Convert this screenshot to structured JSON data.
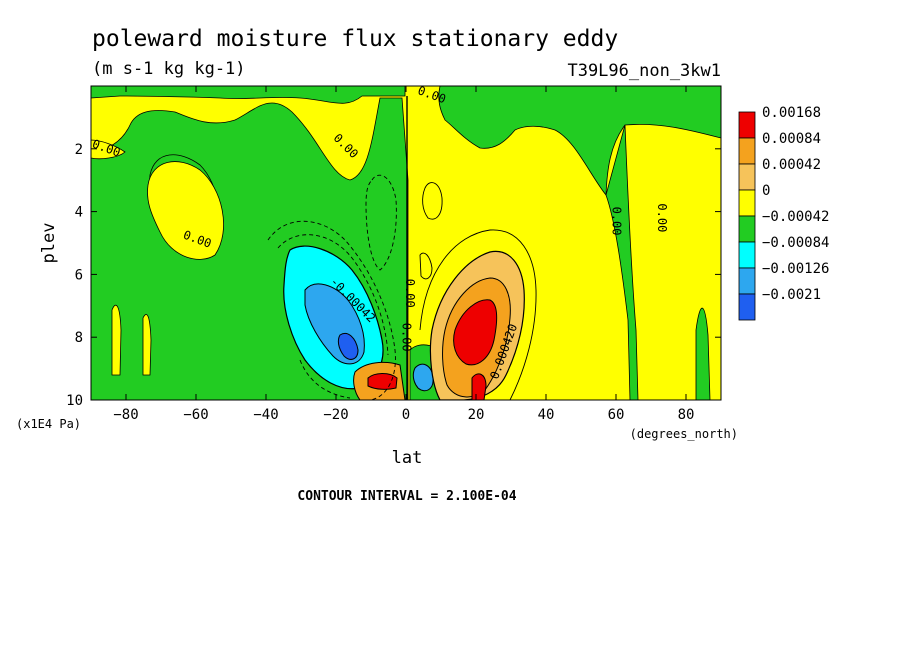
{
  "chart_data": {
    "type": "contour",
    "title": "poleward moisture flux stationary eddy",
    "subtitle": "(m s-1 kg kg-1)",
    "run_label": "T39L96_non_3kw1",
    "xlabel": "lat",
    "x_unit": "(degrees_north)",
    "ylabel": "plev",
    "y_unit": "(x1E4 Pa)",
    "xlim": [
      -90,
      90
    ],
    "ylim": [
      10,
      0
    ],
    "x_ticks": [
      -80,
      -60,
      -40,
      -20,
      0,
      20,
      40,
      60,
      80
    ],
    "x_tick_labels": [
      "−80",
      "−60",
      "−40",
      "−20",
      "0",
      "20",
      "40",
      "60",
      "80"
    ],
    "y_ticks": [
      2,
      4,
      6,
      8,
      10
    ],
    "y_tick_labels": [
      "2",
      "4",
      "6",
      "8",
      "10"
    ],
    "contour_interval_text": "CONTOUR INTERVAL = 2.100E-04",
    "legend": {
      "placement": "right",
      "entries": [
        {
          "label": "0.00168",
          "color": "#ee0000"
        },
        {
          "label": "0.00084",
          "color": "#f4a21e"
        },
        {
          "label": "0.00042",
          "color": "#f6c35a"
        },
        {
          "label": "0",
          "color": "#ffff00"
        },
        {
          "label": "−0.00042",
          "color": "#22cc22"
        },
        {
          "label": "−0.00084",
          "color": "#00ffff"
        },
        {
          "label": "−0.00126",
          "color": "#2da7ef"
        },
        {
          "label": "−0.0021",
          "color": "#1f5ff0"
        }
      ]
    },
    "contour_labels": [
      {
        "text": "0.00",
        "lat": -86,
        "plev": 2.1
      },
      {
        "text": "0.00",
        "lat": -60,
        "plev": 5.0
      },
      {
        "text": "0.00",
        "lat": -18,
        "plev": 2.0
      },
      {
        "text": "0.00",
        "lat": 7,
        "plev": 0.4
      },
      {
        "text": "0.00",
        "lat": 0,
        "plev": 6.6
      },
      {
        "text": "-0.00042",
        "lat": -16,
        "plev": 6.9
      },
      {
        "text": "0.00",
        "lat": -1,
        "plev": 8.0
      },
      {
        "text": "0.000420",
        "lat": 29,
        "plev": 8.5
      },
      {
        "text": "0.00",
        "lat": 59,
        "plev": 4.3
      },
      {
        "text": "0.00",
        "lat": 72,
        "plev": 4.2
      }
    ]
  }
}
